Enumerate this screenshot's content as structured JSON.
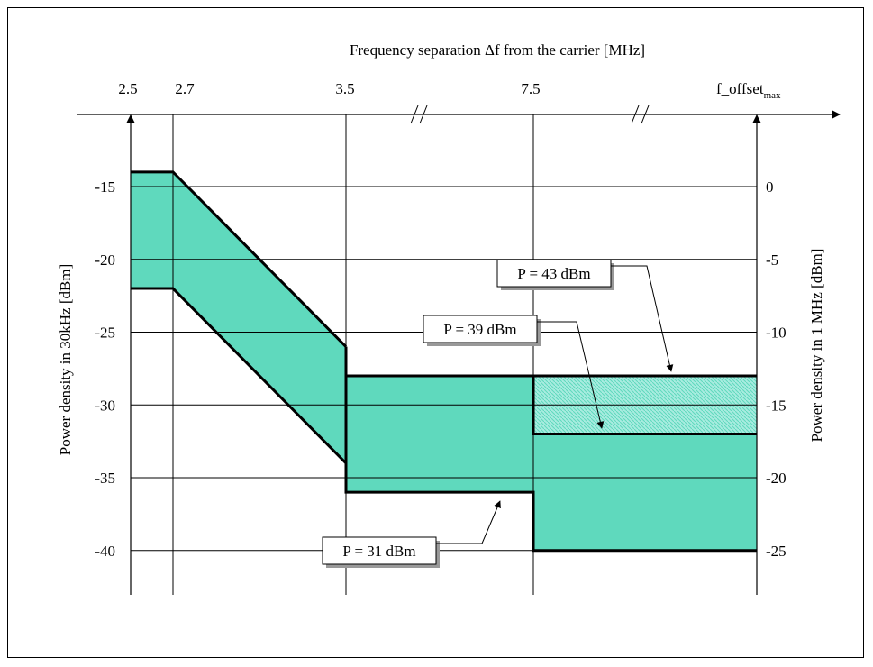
{
  "chart_data": {
    "type": "line",
    "title": "Frequency separation Δf from the carrier [MHz]",
    "xlabel": "Frequency separation Δf from the carrier [MHz]",
    "ylabel_left": "Power density in 30kHz [dBm]",
    "ylabel_right": "Power density in 1 MHz [dBm]",
    "x_ticks": [
      "2.5",
      "2.7",
      "3.5",
      "7.5"
    ],
    "x_tick_last": {
      "base": "f_offset",
      "sub": "max"
    },
    "y_ticks_left": [
      "-15",
      "-20",
      "-25",
      "-30",
      "-35",
      "-40"
    ],
    "y_ticks_right": [
      "0",
      "-5",
      "-10",
      "-15",
      "-20",
      "-25"
    ],
    "ylim_left": [
      -43,
      -11
    ],
    "note": "",
    "series": [
      {
        "name": "P = 43 dBm",
        "x": [
          "2.5",
          "2.7",
          "3.5",
          "3.5",
          "7.5",
          "f_offset_max"
        ],
        "y": [
          -14,
          -14,
          -26,
          -28,
          -28,
          -28
        ]
      },
      {
        "name": "P = 39 dBm",
        "x": [
          "2.5",
          "2.7",
          "3.5",
          "3.5",
          "7.5",
          "7.5",
          "f_offset_max"
        ],
        "y": [
          -14,
          -14,
          -26,
          -28,
          -28,
          -32,
          -32
        ]
      },
      {
        "name": "P = 31 dBm",
        "x": [
          "2.5",
          "2.7",
          "3.5",
          "3.5",
          "7.5",
          "7.5",
          "f_offset_max"
        ],
        "y": [
          -22,
          -22,
          -34,
          -36,
          -36,
          -40,
          -40
        ]
      }
    ],
    "colors": {
      "band": "#5fd9bd",
      "band_hatch": "#a8ece0"
    },
    "grid": true
  }
}
